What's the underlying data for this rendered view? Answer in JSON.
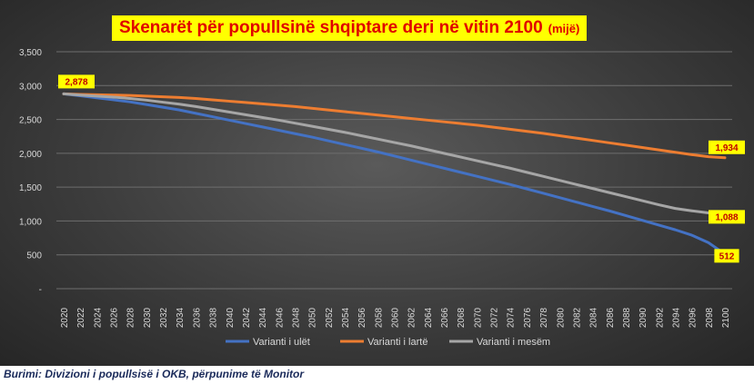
{
  "chart_data": {
    "type": "line",
    "title": "Skenarët për popullsinë shqiptare deri në vitin 2100",
    "title_unit": "(mijë)",
    "y_ticks": [
      "-",
      "500",
      "1,000",
      "1,500",
      "2,000",
      "2,500",
      "3,000",
      "3,500"
    ],
    "ylim": [
      0,
      3500
    ],
    "grid": true,
    "legend_position": "bottom",
    "x": [
      2020,
      2022,
      2024,
      2026,
      2028,
      2030,
      2032,
      2034,
      2036,
      2038,
      2040,
      2042,
      2044,
      2046,
      2048,
      2050,
      2052,
      2054,
      2056,
      2058,
      2060,
      2062,
      2064,
      2066,
      2068,
      2070,
      2072,
      2074,
      2076,
      2078,
      2080,
      2082,
      2084,
      2086,
      2088,
      2090,
      2092,
      2094,
      2096,
      2098,
      2100
    ],
    "series": [
      {
        "name": "Varianti i ulët",
        "color": "#4472c4",
        "values": [
          2878,
          2850,
          2820,
          2790,
          2760,
          2720,
          2680,
          2640,
          2590,
          2540,
          2490,
          2440,
          2390,
          2340,
          2290,
          2240,
          2185,
          2130,
          2075,
          2020,
          1960,
          1900,
          1840,
          1780,
          1720,
          1660,
          1600,
          1540,
          1475,
          1410,
          1345,
          1280,
          1215,
          1150,
          1080,
          1010,
          940,
          870,
          790,
          680,
          512
        ]
      },
      {
        "name": "Varianti i lartë",
        "color": "#ed7d31",
        "values": [
          2878,
          2870,
          2865,
          2860,
          2855,
          2845,
          2835,
          2825,
          2810,
          2790,
          2770,
          2750,
          2730,
          2710,
          2690,
          2665,
          2640,
          2615,
          2590,
          2565,
          2540,
          2515,
          2490,
          2465,
          2440,
          2415,
          2385,
          2355,
          2325,
          2295,
          2260,
          2225,
          2190,
          2155,
          2120,
          2085,
          2050,
          2015,
          1980,
          1950,
          1934
        ]
      },
      {
        "name": "Varianti i mesëm",
        "color": "#a6a6a6",
        "values": [
          2878,
          2860,
          2845,
          2830,
          2810,
          2785,
          2755,
          2725,
          2690,
          2650,
          2610,
          2570,
          2530,
          2490,
          2445,
          2400,
          2355,
          2310,
          2260,
          2210,
          2160,
          2110,
          2055,
          2000,
          1945,
          1890,
          1835,
          1780,
          1720,
          1660,
          1600,
          1540,
          1480,
          1420,
          1360,
          1300,
          1240,
          1185,
          1150,
          1120,
          1088
        ]
      }
    ],
    "data_labels": [
      {
        "series": 0,
        "text": "2,878",
        "at": "start"
      },
      {
        "series": 1,
        "text": "1,934",
        "at": "end"
      },
      {
        "series": 2,
        "text": "1,088",
        "at": "end"
      },
      {
        "series": 0,
        "text": "512",
        "at": "end"
      }
    ]
  },
  "source": "Burimi: Divizioni i popullsisë i OKB, përpunime të Monitor"
}
